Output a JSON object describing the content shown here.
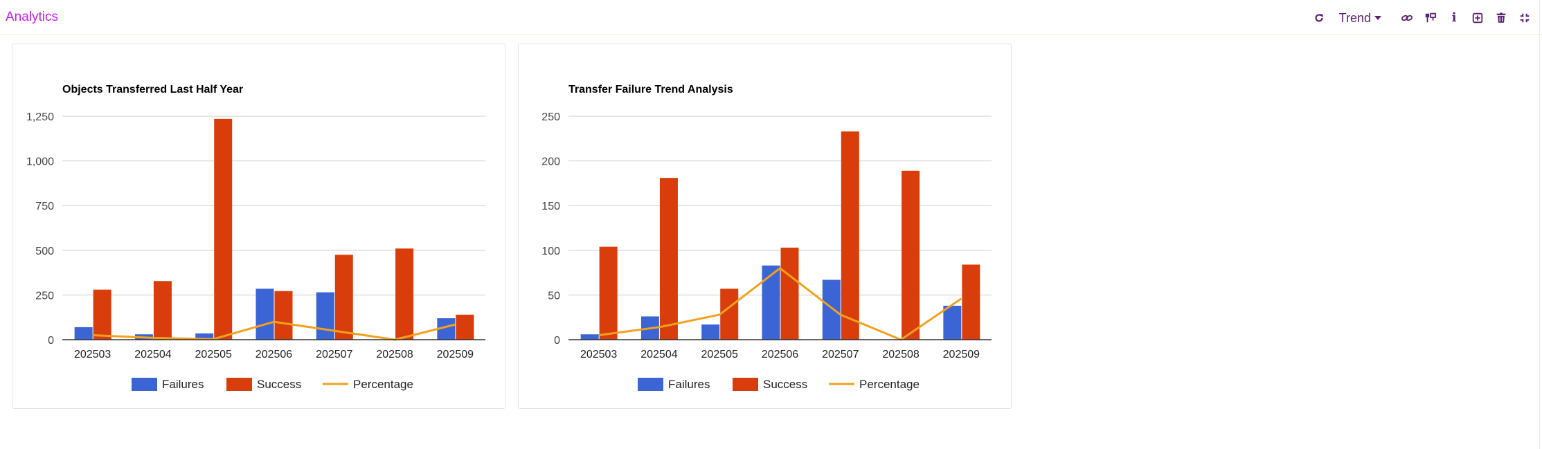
{
  "header": {
    "title": "Analytics",
    "trend_label": "Trend",
    "icons": [
      "refresh-icon",
      "link-icon",
      "filter-icon",
      "info-icon",
      "add-icon",
      "trash-icon",
      "collapse-icon"
    ]
  },
  "colors": {
    "failures": "#3b64d4",
    "success": "#d93d0b",
    "percentage": "#f3a11d",
    "title": "#c61ef2",
    "toolbar": "#5b1f73"
  },
  "chart_data": [
    {
      "type": "bar",
      "title": "Objects Transferred Last Half Year",
      "categories": [
        "202503",
        "202504",
        "202505",
        "202506",
        "202507",
        "202508",
        "202509"
      ],
      "series": [
        {
          "name": "Failures",
          "kind": "bar",
          "values": [
            70,
            30,
            35,
            285,
            265,
            0,
            120
          ]
        },
        {
          "name": "Success",
          "kind": "bar",
          "values": [
            280,
            328,
            1235,
            272,
            475,
            510,
            140
          ]
        },
        {
          "name": "Percentage",
          "kind": "line",
          "values": [
            25,
            10,
            3,
            100,
            50,
            0,
            85
          ]
        }
      ],
      "ylim": [
        0,
        1250
      ],
      "yticks": [
        0,
        250,
        500,
        750,
        1000,
        1250
      ],
      "ytick_labels": [
        "0",
        "250",
        "500",
        "750",
        "1,000",
        "1,250"
      ],
      "grid": true,
      "legend": "bottom"
    },
    {
      "type": "bar",
      "title": "Transfer Failure Trend Analysis",
      "categories": [
        "202503",
        "202504",
        "202505",
        "202506",
        "202507",
        "202508",
        "202509"
      ],
      "series": [
        {
          "name": "Failures",
          "kind": "bar",
          "values": [
            6,
            26,
            17,
            83,
            67,
            0,
            38
          ]
        },
        {
          "name": "Success",
          "kind": "bar",
          "values": [
            104,
            181,
            57,
            103,
            233,
            189,
            84
          ]
        },
        {
          "name": "Percentage",
          "kind": "line",
          "values": [
            5,
            14,
            28,
            80,
            28,
            0,
            46
          ]
        }
      ],
      "ylim": [
        0,
        250
      ],
      "yticks": [
        0,
        50,
        100,
        150,
        200,
        250
      ],
      "ytick_labels": [
        "0",
        "50",
        "100",
        "150",
        "200",
        "250"
      ],
      "grid": true,
      "legend": "bottom"
    }
  ]
}
